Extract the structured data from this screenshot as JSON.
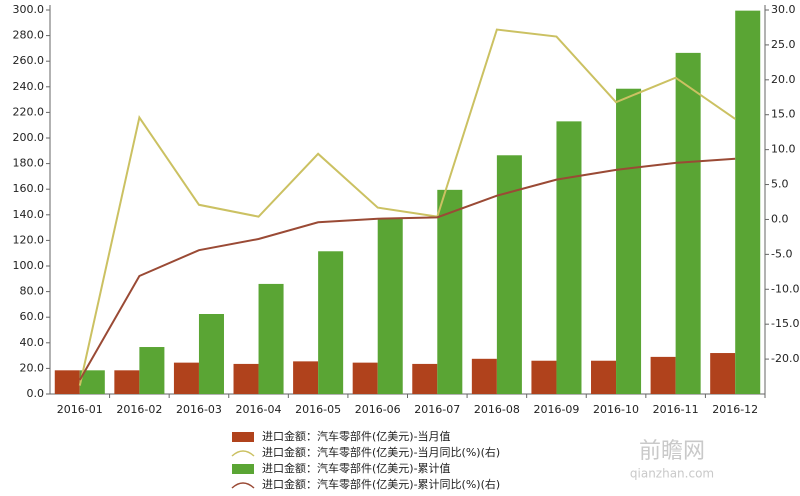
{
  "chart_data": {
    "type": "bar-line",
    "categories": [
      "2016-01",
      "2016-02",
      "2016-03",
      "2016-04",
      "2016-05",
      "2016-06",
      "2016-07",
      "2016-08",
      "2016-09",
      "2016-10",
      "2016-11",
      "2016-12"
    ],
    "series": [
      {
        "name": "进口金额：汽车零部件(亿美元)-当月值",
        "type": "bar",
        "color": "#b0421c",
        "values": [
          18.5,
          18.5,
          24.5,
          23.5,
          25.5,
          24.5,
          23.5,
          27.5,
          26,
          26,
          29,
          32
        ]
      },
      {
        "name": "进口金额：汽车零部件(亿美元)-当月同比(%)(右)",
        "type": "line",
        "axis": "y2",
        "color": "#cbc162",
        "values": [
          -23.8,
          14.6,
          2.1,
          0.4,
          9.4,
          1.7,
          0.4,
          27.2,
          26.2,
          16.8,
          20.3,
          14.4
        ]
      },
      {
        "name": "进口金额：汽车零部件(亿美元)-累计值",
        "type": "bar",
        "color": "#5aa534",
        "values": [
          18.5,
          36.7,
          62.5,
          86,
          111.5,
          136.7,
          159.5,
          186.5,
          213,
          238.5,
          266.5,
          299.5
        ]
      },
      {
        "name": "进口金额：汽车零部件(亿美元)-累计同比(%)(右)",
        "type": "line",
        "axis": "y2",
        "color": "#9a4a35",
        "values": [
          -23,
          -8.1,
          -4.4,
          -2.8,
          -0.4,
          0.1,
          0.3,
          3.4,
          5.7,
          7.1,
          8.1,
          8.7
        ]
      }
    ],
    "ylim": [
      0,
      300
    ],
    "yticks": [
      {
        "value": 0,
        "label": "0.0"
      },
      {
        "value": 20,
        "label": "20.0"
      },
      {
        "value": 40,
        "label": "40.0"
      },
      {
        "value": 60,
        "label": "60.0"
      },
      {
        "value": 80,
        "label": "80.0"
      },
      {
        "value": 100,
        "label": "100.0"
      },
      {
        "value": 120,
        "label": "120.0"
      },
      {
        "value": 140,
        "label": "140.0"
      },
      {
        "value": 160,
        "label": "160.0"
      },
      {
        "value": 180,
        "label": "180.0"
      },
      {
        "value": 200,
        "label": "200.0"
      },
      {
        "value": 220,
        "label": "220.0"
      },
      {
        "value": 240,
        "label": "240.0"
      },
      {
        "value": 260,
        "label": "260.0"
      },
      {
        "value": 280,
        "label": "280.0"
      },
      {
        "value": 300,
        "label": "300.0"
      }
    ],
    "y2lim": [
      -25,
      30
    ],
    "y2ticks": [
      {
        "value": -20,
        "label": "-20.0"
      },
      {
        "value": -15,
        "label": "-15.0"
      },
      {
        "value": -10,
        "label": "-10.0"
      },
      {
        "value": -5,
        "label": "-5.0"
      },
      {
        "value": 0,
        "label": "0.0"
      },
      {
        "value": 5,
        "label": "5.0"
      },
      {
        "value": 10,
        "label": "10.0"
      },
      {
        "value": 15,
        "label": "15.0"
      },
      {
        "value": 20,
        "label": "20.0"
      },
      {
        "value": 25,
        "label": "25.0"
      },
      {
        "value": 30,
        "label": "30.0"
      }
    ],
    "legend": "bottom",
    "watermark": {
      "brand": "前瞻网",
      "site": "qianzhan.com"
    }
  }
}
